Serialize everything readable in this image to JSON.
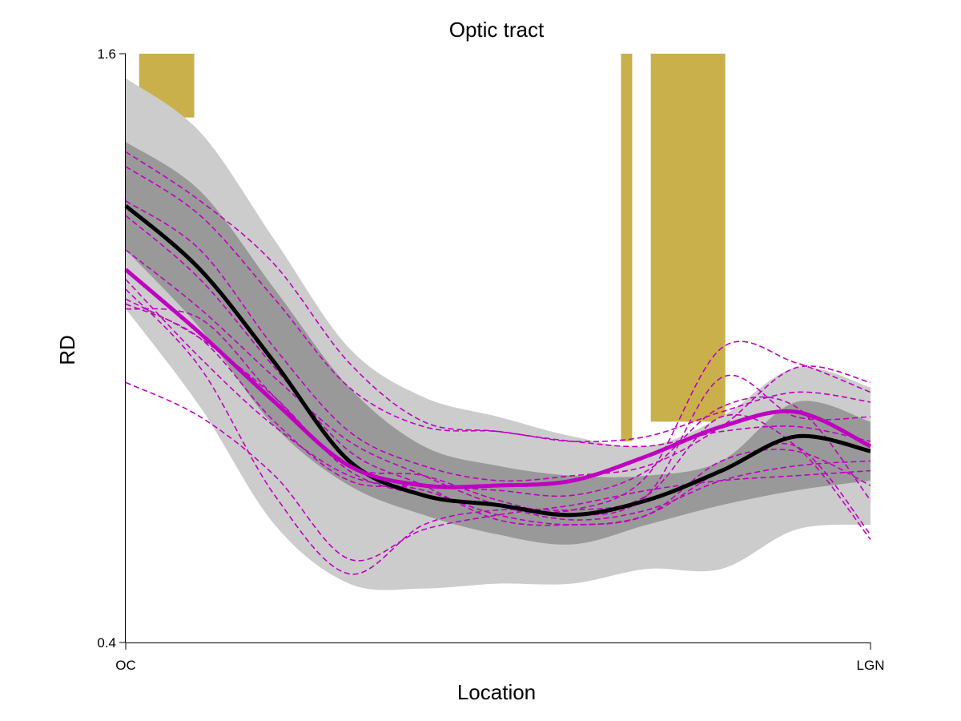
{
  "chart_data": {
    "type": "line",
    "title": "Optic tract",
    "xlabel": "Location",
    "ylabel": "RD",
    "ylim": [
      0.4,
      1.6
    ],
    "yticks": [
      "1.6",
      "0.4"
    ],
    "xlim": [
      0,
      100
    ],
    "xticks": [
      "OC",
      "LGN"
    ],
    "grid": false,
    "colors": {
      "significance": "#c9b04b",
      "band_outer": "#cccccc",
      "band_inner": "#999999",
      "control_mean": "#000000",
      "patient": "#c000c0"
    },
    "x": [
      0,
      10,
      20,
      30,
      40,
      50,
      60,
      70,
      80,
      90,
      100
    ],
    "significance_regions": [
      {
        "x_start": 1.8,
        "x_end": 9.2,
        "y_low": 1.47
      },
      {
        "x_start": 66.5,
        "x_end": 68.0,
        "y_low": 0.81
      },
      {
        "x_start": 70.5,
        "x_end": 80.5,
        "y_low": 0.85
      }
    ],
    "series": [
      {
        "role": "band-outer-upper",
        "values": [
          1.55,
          1.44,
          1.22,
          1.0,
          0.9,
          0.86,
          0.82,
          0.8,
          0.86,
          0.96,
          0.92
        ]
      },
      {
        "role": "band-outer-lower",
        "values": [
          1.08,
          0.88,
          0.64,
          0.52,
          0.51,
          0.52,
          0.52,
          0.55,
          0.55,
          0.63,
          0.64
        ]
      },
      {
        "role": "band-inner-upper",
        "values": [
          1.42,
          1.32,
          1.12,
          0.92,
          0.8,
          0.76,
          0.74,
          0.74,
          0.77,
          0.89,
          0.85
        ]
      },
      {
        "role": "band-inner-lower",
        "values": [
          1.2,
          1.04,
          0.84,
          0.72,
          0.66,
          0.62,
          0.6,
          0.64,
          0.68,
          0.71,
          0.73
        ]
      },
      {
        "role": "control-mean",
        "values": [
          1.29,
          1.16,
          0.97,
          0.77,
          0.7,
          0.68,
          0.66,
          0.69,
          0.75,
          0.82,
          0.79
        ]
      },
      {
        "role": "patient-mean",
        "values": [
          1.16,
          1.03,
          0.89,
          0.76,
          0.72,
          0.72,
          0.73,
          0.78,
          0.84,
          0.87,
          0.8
        ]
      },
      {
        "role": "patient-individual",
        "values": [
          1.4,
          1.3,
          1.17,
          0.97,
          0.85,
          0.83,
          0.81,
          0.8,
          0.83,
          0.84,
          0.81
        ]
      },
      {
        "role": "patient-individual",
        "values": [
          1.37,
          1.27,
          1.1,
          0.92,
          0.84,
          0.83,
          0.81,
          0.82,
          0.87,
          0.91,
          0.89
        ]
      },
      {
        "role": "patient-individual",
        "values": [
          1.3,
          1.2,
          1.0,
          0.83,
          0.76,
          0.73,
          0.74,
          0.76,
          0.84,
          0.96,
          0.93
        ]
      },
      {
        "role": "patient-individual",
        "values": [
          1.27,
          1.14,
          0.96,
          0.79,
          0.72,
          0.65,
          0.64,
          0.66,
          0.77,
          0.79,
          0.72
        ]
      },
      {
        "role": "patient-individual",
        "values": [
          1.2,
          1.08,
          0.94,
          0.81,
          0.74,
          0.68,
          0.65,
          0.67,
          0.73,
          0.76,
          0.77
        ]
      },
      {
        "role": "patient-individual",
        "values": [
          1.14,
          0.98,
          0.84,
          0.74,
          0.71,
          0.66,
          0.64,
          0.66,
          0.75,
          0.8,
          0.62
        ]
      },
      {
        "role": "patient-individual",
        "values": [
          1.1,
          1.02,
          0.9,
          0.75,
          0.7,
          0.68,
          0.67,
          0.7,
          0.86,
          0.8,
          0.61
        ]
      },
      {
        "role": "patient-individual",
        "values": [
          1.09,
          1.02,
          0.85,
          0.73,
          0.72,
          0.71,
          0.7,
          0.75,
          0.88,
          0.88,
          0.69
        ]
      },
      {
        "role": "patient-individual",
        "values": [
          1.08,
          1.06,
          0.9,
          0.76,
          0.74,
          0.69,
          0.66,
          0.7,
          0.94,
          0.86,
          0.86
        ]
      },
      {
        "role": "patient-individual",
        "values": [
          0.93,
          0.86,
          0.74,
          0.57,
          0.63,
          0.66,
          0.68,
          0.71,
          0.73,
          0.74,
          0.75
        ]
      },
      {
        "role": "patient-individual",
        "values": [
          1.12,
          0.96,
          0.7,
          0.54,
          0.64,
          0.67,
          0.67,
          0.74,
          1.0,
          0.97,
          0.91
        ]
      }
    ]
  }
}
